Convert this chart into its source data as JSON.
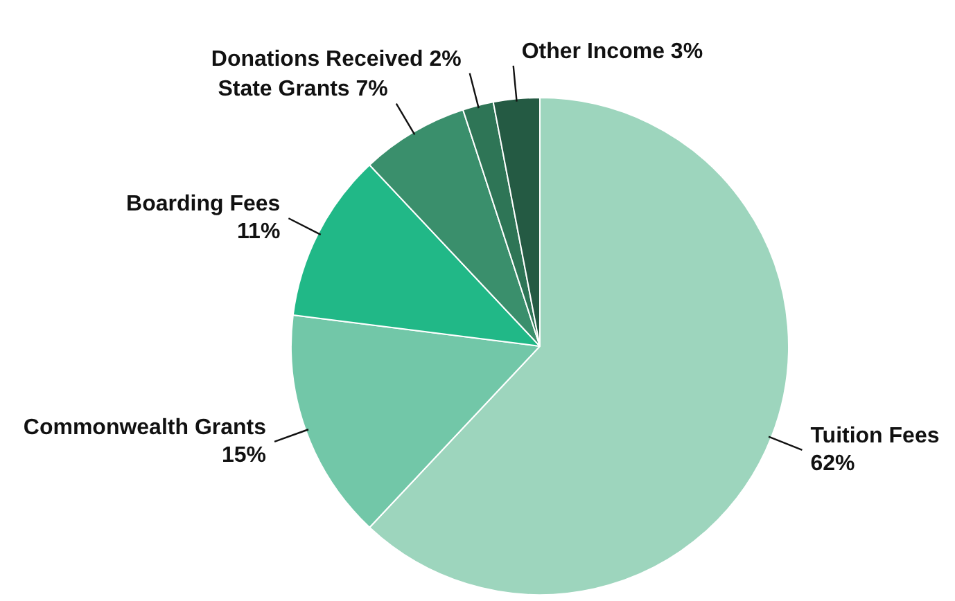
{
  "chart_data": {
    "type": "pie",
    "categories": [
      "Tuition Fees",
      "Commonwealth Grants",
      "Boarding Fees",
      "State Grants",
      "Donations Received",
      "Other Income"
    ],
    "values": [
      62,
      15,
      11,
      7,
      2,
      3
    ],
    "value_labels": [
      "62%",
      "15%",
      "11%",
      "7%",
      "2%",
      "3%"
    ],
    "colors": [
      "#9dd5bd",
      "#72c7a8",
      "#21b887",
      "#3a8f6c",
      "#2e7556",
      "#245a43"
    ]
  }
}
